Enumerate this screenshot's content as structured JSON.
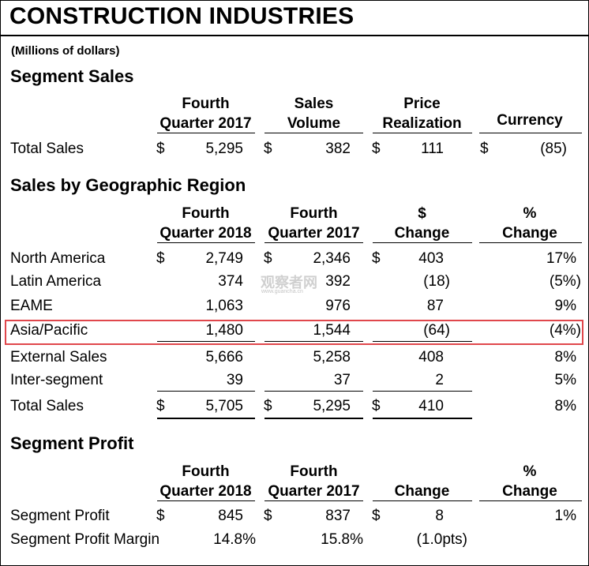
{
  "title": "CONSTRUCTION INDUSTRIES",
  "subtitle": "(Millions of dollars)",
  "watermark": {
    "main": "观察者网",
    "sub": "www.guancha.cn"
  },
  "segment_sales": {
    "heading": "Segment Sales",
    "headers": [
      [
        "Fourth",
        "Quarter 2017"
      ],
      [
        "Sales",
        "Volume"
      ],
      [
        "Price",
        "Realization"
      ],
      [
        "",
        "Currency"
      ]
    ],
    "row": {
      "label": "Total Sales",
      "c1": "5,295",
      "c2": "382",
      "c3": "111",
      "c4": "(85)"
    }
  },
  "region": {
    "heading": "Sales by Geographic Region",
    "headers": [
      [
        "Fourth",
        "Quarter 2018"
      ],
      [
        "Fourth",
        "Quarter 2017"
      ],
      [
        "$",
        "Change"
      ],
      [
        "%",
        "Change"
      ]
    ],
    "rows": [
      {
        "label": "North America",
        "c1": "2,749",
        "c2": "2,346",
        "c3": "403",
        "c4": "17%"
      },
      {
        "label": "Latin America",
        "c1": "374",
        "c2": "392",
        "c3": "(18)",
        "c4": "(5%)"
      },
      {
        "label": "EAME",
        "c1": "1,063",
        "c2": "976",
        "c3": "87",
        "c4": "9%"
      },
      {
        "label": "Asia/Pacific",
        "c1": "1,480",
        "c2": "1,544",
        "c3": "(64)",
        "c4": "(4%)"
      },
      {
        "label": "External Sales",
        "c1": "5,666",
        "c2": "5,258",
        "c3": "408",
        "c4": "8%"
      },
      {
        "label": "Inter-segment",
        "c1": "39",
        "c2": "37",
        "c3": "2",
        "c4": "5%"
      },
      {
        "label": "Total Sales",
        "c1": "5,705",
        "c2": "5,295",
        "c3": "410",
        "c4": "8%"
      }
    ]
  },
  "profit": {
    "heading": "Segment Profit",
    "headers": [
      [
        "Fourth",
        "Quarter 2018"
      ],
      [
        "Fourth",
        "Quarter 2017"
      ],
      [
        "",
        "Change"
      ],
      [
        "%",
        "Change"
      ]
    ],
    "rows": [
      {
        "label": "Segment Profit",
        "c1": "845",
        "c2": "837",
        "c3": "8",
        "c4": "1%"
      },
      {
        "label": "Segment Profit Margin",
        "c1": "14.8%",
        "c2": "15.8%",
        "c3": "(1.0pts)",
        "c4": ""
      }
    ]
  },
  "currency_symbol": "$"
}
